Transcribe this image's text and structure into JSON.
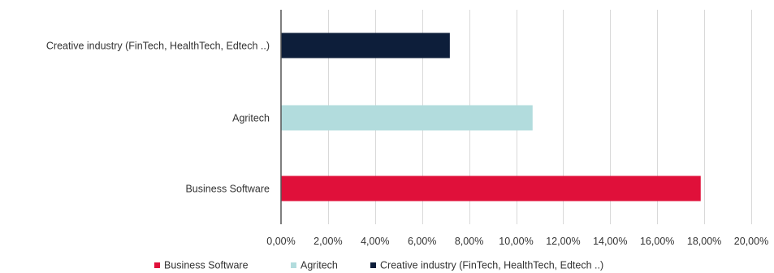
{
  "chart_data": {
    "type": "bar",
    "orientation": "horizontal",
    "categories": [
      "Business Software",
      "Agritech",
      "Creative industry (FinTech, HealthTech, Edtech ..)"
    ],
    "values": [
      0.1785,
      0.107,
      0.0718
    ],
    "series_colors": [
      "#E0103A",
      "#B2DCDD",
      "#0D1E3A"
    ],
    "x_ticks": [
      "0,00%",
      "2,00%",
      "4,00%",
      "6,00%",
      "8,00%",
      "10,00%",
      "12,00%",
      "14,00%",
      "16,00%",
      "18,00%",
      "20,00%"
    ],
    "xlim": [
      0,
      0.2
    ],
    "grid": "vertical",
    "legend": {
      "position": "bottom",
      "entries": [
        {
          "label": "Business Software",
          "color": "#E0103A"
        },
        {
          "label": "Agritech",
          "color": "#B2DCDD"
        },
        {
          "label": "Creative industry (FinTech, HealthTech, Edtech ..)",
          "color": "#0D1E3A"
        }
      ]
    },
    "colors": {
      "grid": "#D9D9D9",
      "axis": "#555555",
      "text": "#333333"
    }
  }
}
